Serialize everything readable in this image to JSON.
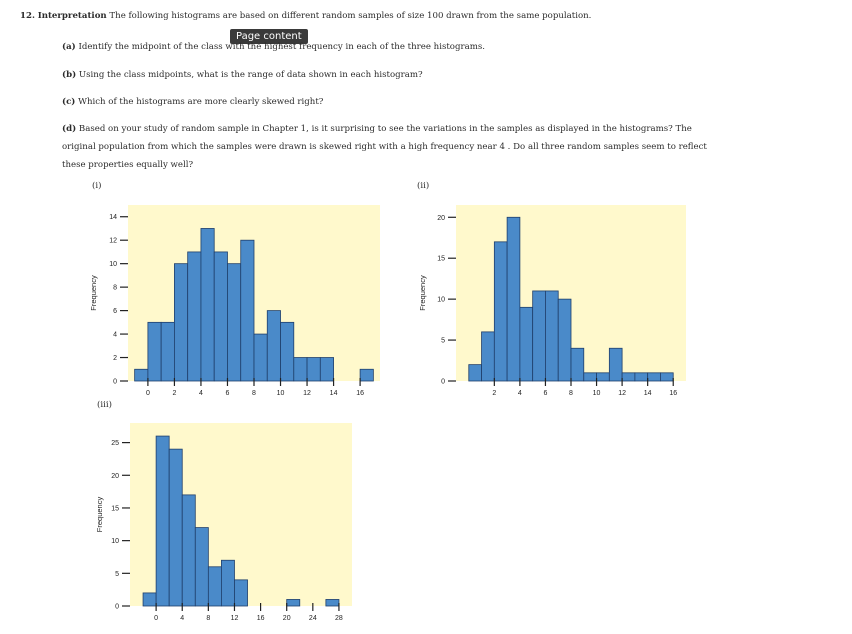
{
  "problem": {
    "number": "12.",
    "title": "Interpretation",
    "intro": "The following histograms are based on different random samples of size 100 drawn from the same population."
  },
  "tooltip": "Page content",
  "parts": {
    "a": {
      "tag": "(a)",
      "text": "Identify the midpoint of the class with the highest frequency in each of the three histograms."
    },
    "b": {
      "tag": "(b)",
      "text": "Using the class midpoints, what is the range of data shown in each histogram?"
    },
    "c": {
      "tag": "(c)",
      "text": "Which of the histograms are more clearly skewed right?"
    },
    "d": {
      "tag": "(d)",
      "line1": "Based on your study of random sample in Chapter 1, is it surprising to see the variations in the samples as displayed in the histograms? The",
      "line2": "original population from which the samples were drawn is skewed right with a high frequency near 4 . Do all three random samples seem to reflect",
      "line3": "these properties equally well?"
    }
  },
  "chart_data": [
    {
      "type": "bar",
      "label": "(i)",
      "ylabel": "Frequency",
      "bin_width": 1,
      "bin_left_edges": [
        -1,
        0,
        1,
        2,
        3,
        4,
        5,
        6,
        7,
        8,
        9,
        10,
        11,
        12,
        13,
        14,
        15,
        16
      ],
      "values": [
        1,
        5,
        5,
        10,
        11,
        13,
        11,
        10,
        12,
        4,
        6,
        5,
        2,
        2,
        2,
        0,
        0,
        1
      ],
      "xticks": [
        0,
        2,
        4,
        6,
        8,
        10,
        12,
        14,
        16
      ],
      "yticks": [
        0,
        2,
        4,
        6,
        8,
        10,
        12,
        14
      ],
      "xlim": [
        -1.5,
        17.5
      ],
      "ylim": [
        0,
        15
      ],
      "bar_color": "#4a8ac9",
      "background": "#fff9cc"
    },
    {
      "type": "bar",
      "label": "(ii)",
      "ylabel": "Frequency",
      "bin_width": 1,
      "bin_left_edges": [
        0,
        1,
        2,
        3,
        4,
        5,
        6,
        7,
        8,
        9,
        10,
        11,
        12,
        13,
        14,
        15
      ],
      "values": [
        2,
        6,
        17,
        20,
        9,
        11,
        11,
        10,
        4,
        1,
        1,
        4,
        1,
        1,
        1,
        1
      ],
      "xticks": [
        2,
        4,
        6,
        8,
        10,
        12,
        14,
        16
      ],
      "yticks": [
        0,
        5,
        10,
        15,
        20
      ],
      "xlim": [
        -1,
        17
      ],
      "ylim": [
        0,
        21.5
      ],
      "bar_color": "#4a8ac9",
      "background": "#fff9cc"
    },
    {
      "type": "bar",
      "label": "(iii)",
      "ylabel": "Frequency",
      "bin_width": 2,
      "bin_left_edges": [
        -2,
        0,
        2,
        4,
        6,
        8,
        10,
        12,
        14,
        16,
        18,
        20,
        22,
        24,
        26
      ],
      "values": [
        2,
        26,
        24,
        17,
        12,
        6,
        7,
        4,
        0,
        0,
        0,
        1,
        0,
        0,
        1
      ],
      "xticks": [
        0,
        4,
        8,
        12,
        16,
        20,
        24,
        28
      ],
      "yticks": [
        0,
        5,
        10,
        15,
        20,
        25
      ],
      "xlim": [
        -4,
        30
      ],
      "ylim": [
        0,
        28
      ],
      "bar_color": "#4a8ac9",
      "background": "#fff9cc"
    }
  ]
}
